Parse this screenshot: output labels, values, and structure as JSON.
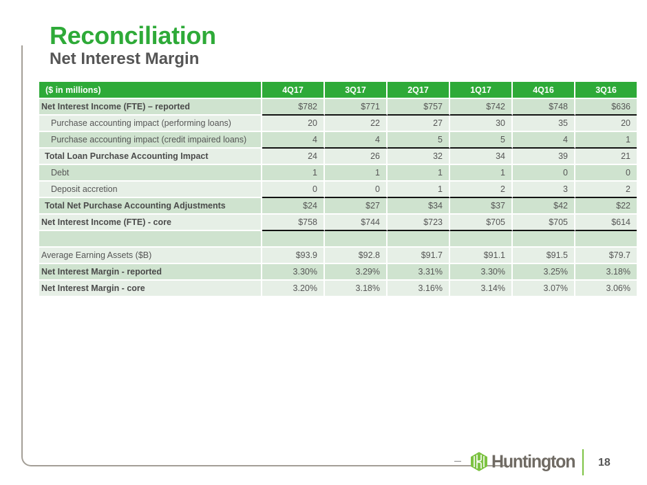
{
  "slide": {
    "title": "Reconciliation",
    "subtitle": "Net Interest Margin",
    "page_number": "18",
    "brand": "Huntington",
    "colors": {
      "accent_green": "#2eaa38",
      "row_dark": "#cfe3cf",
      "row_light": "#e6efe6",
      "text_gray": "#555555",
      "logo_green": "#7cc242",
      "logo_gray": "#6f6a63"
    }
  },
  "table": {
    "header": {
      "label": "($ in millions)",
      "columns": [
        "4Q17",
        "3Q17",
        "2Q17",
        "1Q17",
        "4Q16",
        "3Q16"
      ]
    },
    "rows": [
      {
        "label": "Net Interest Income (FTE) – reported",
        "values": [
          "$782",
          "$771",
          "$757",
          "$742",
          "$748",
          "$636"
        ]
      },
      {
        "label": "Purchase accounting impact (performing loans)",
        "values": [
          "20",
          "22",
          "27",
          "30",
          "35",
          "20"
        ]
      },
      {
        "label": "Purchase accounting impact (credit impaired loans)",
        "values": [
          "4",
          "4",
          "5",
          "5",
          "4",
          "1"
        ]
      },
      {
        "label": "Total Loan Purchase Accounting Impact",
        "values": [
          "24",
          "26",
          "32",
          "34",
          "39",
          "21"
        ]
      },
      {
        "label": "Debt",
        "values": [
          "1",
          "1",
          "1",
          "1",
          "0",
          "0"
        ]
      },
      {
        "label": "Deposit accretion",
        "values": [
          "0",
          "0",
          "1",
          "2",
          "3",
          "2"
        ]
      },
      {
        "label": "Total Net Purchase Accounting Adjustments",
        "values": [
          "$24",
          "$27",
          "$34",
          "$37",
          "$42",
          "$22"
        ]
      },
      {
        "label": "Net Interest Income (FTE) - core",
        "values": [
          "$758",
          "$744",
          "$723",
          "$705",
          "$705",
          "$614"
        ]
      },
      {
        "label": "",
        "values": [
          "",
          "",
          "",
          "",
          "",
          ""
        ]
      },
      {
        "label": "Average Earning Assets ($B)",
        "values": [
          "$93.9",
          "$92.8",
          "$91.7",
          "$91.1",
          "$91.5",
          "$79.7"
        ]
      },
      {
        "label": "Net Interest Margin - reported",
        "values": [
          "3.30%",
          "3.29%",
          "3.31%",
          "3.30%",
          "3.25%",
          "3.18%"
        ]
      },
      {
        "label": "Net Interest Margin - core",
        "values": [
          "3.20%",
          "3.18%",
          "3.16%",
          "3.14%",
          "3.07%",
          "3.06%"
        ]
      }
    ]
  }
}
